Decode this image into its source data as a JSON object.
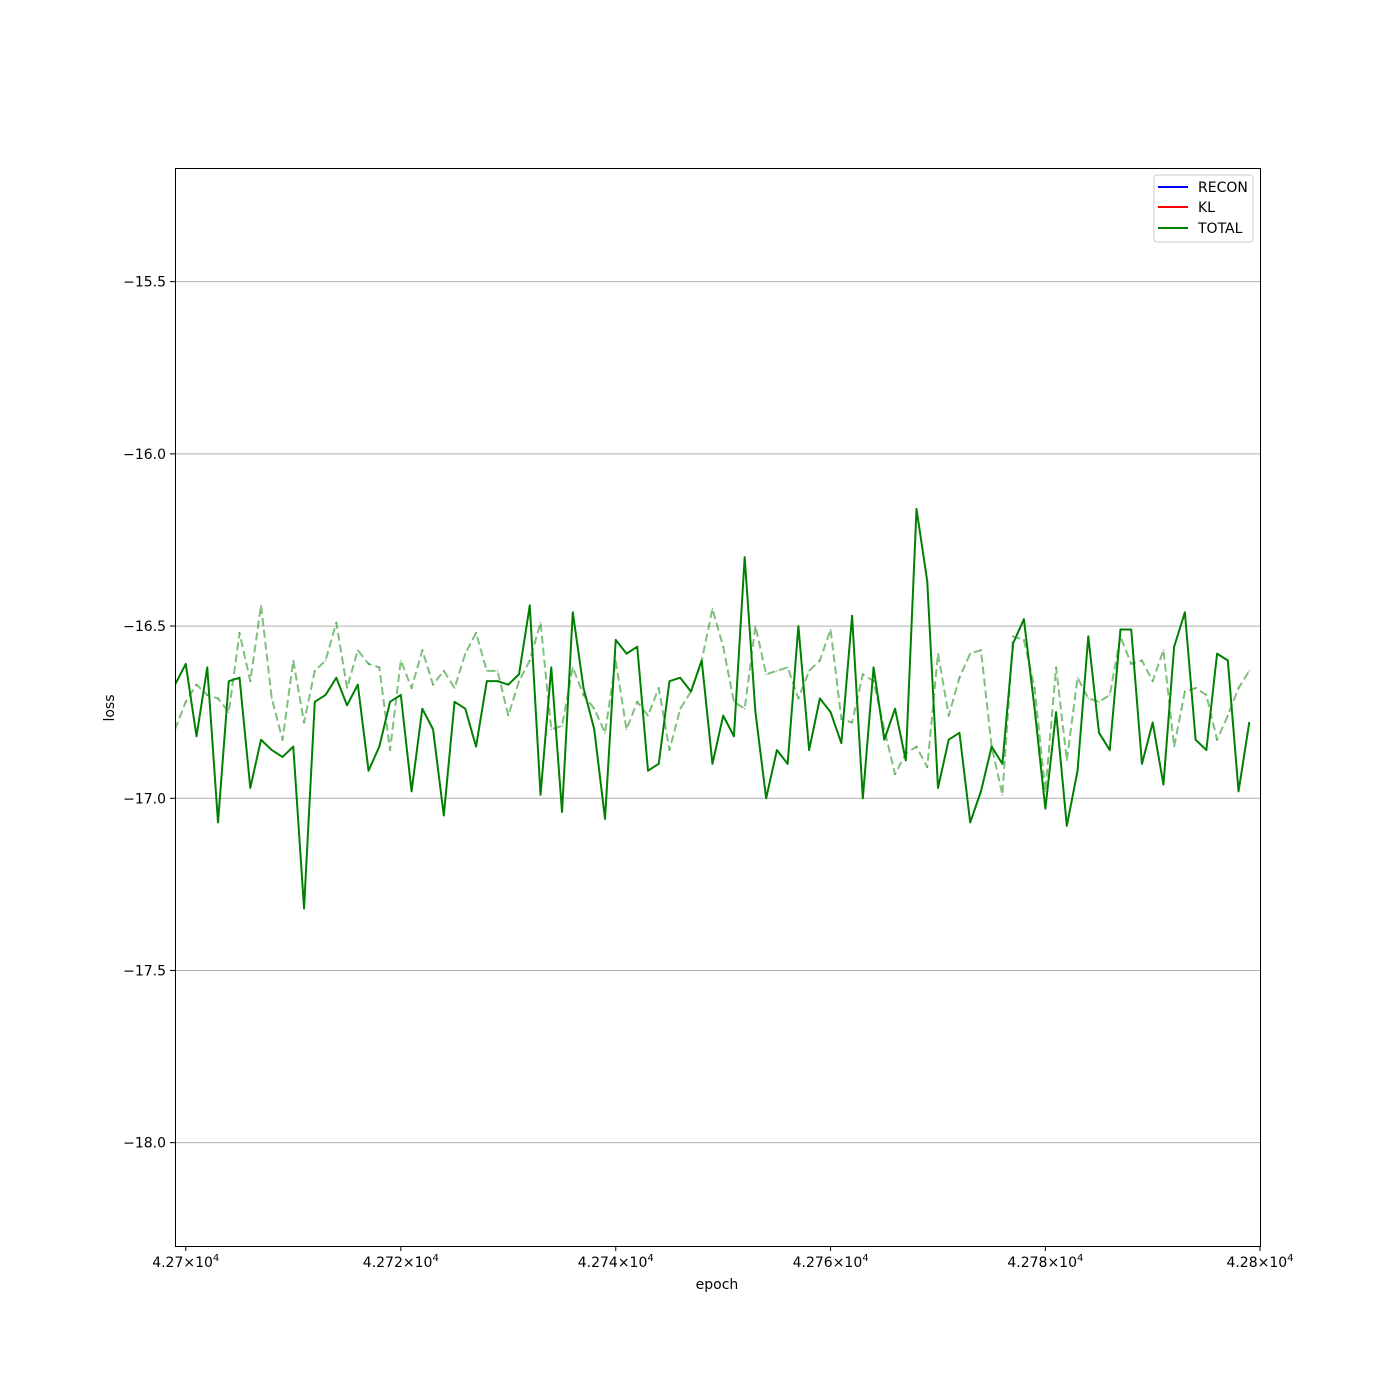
{
  "chart_data": {
    "type": "line",
    "xlabel": "epoch",
    "ylabel": "loss",
    "xlim": [
      42699,
      42800
    ],
    "ylim": [
      -18.3,
      -15.17
    ],
    "x_scale": "log",
    "grid": "y-major",
    "x_ticks": [
      {
        "value": 42700,
        "mantissa": "4.27",
        "exp": "4"
      },
      {
        "value": 42720,
        "mantissa": "4.272",
        "exp": "4"
      },
      {
        "value": 42740,
        "mantissa": "4.274",
        "exp": "4"
      },
      {
        "value": 42760,
        "mantissa": "4.276",
        "exp": "4"
      },
      {
        "value": 42780,
        "mantissa": "4.278",
        "exp": "4"
      },
      {
        "value": 42800,
        "mantissa": "4.28",
        "exp": "4"
      }
    ],
    "y_ticks": [
      {
        "value": -15.5,
        "label": "−15.5"
      },
      {
        "value": -16.0,
        "label": "−16.0"
      },
      {
        "value": -16.5,
        "label": "−16.5"
      },
      {
        "value": -17.0,
        "label": "−17.0"
      },
      {
        "value": -17.5,
        "label": "−17.5"
      },
      {
        "value": -18.0,
        "label": "−18.0"
      }
    ],
    "legend": {
      "placement": "upper right",
      "entries": [
        {
          "label": "RECON",
          "color": "#0000ff"
        },
        {
          "label": "KL",
          "color": "#ff0000"
        },
        {
          "label": "TOTAL",
          "color": "#008000"
        }
      ]
    },
    "x": [
      42699,
      42700,
      42701,
      42702,
      42703,
      42704,
      42705,
      42706,
      42707,
      42708,
      42709,
      42710,
      42711,
      42712,
      42713,
      42714,
      42715,
      42716,
      42717,
      42718,
      42719,
      42720,
      42721,
      42722,
      42723,
      42724,
      42725,
      42726,
      42727,
      42728,
      42729,
      42730,
      42731,
      42732,
      42733,
      42734,
      42735,
      42736,
      42737,
      42738,
      42739,
      42740,
      42741,
      42742,
      42743,
      42744,
      42745,
      42746,
      42747,
      42748,
      42749,
      42750,
      42751,
      42752,
      42753,
      42754,
      42755,
      42756,
      42757,
      42758,
      42759,
      42760,
      42761,
      42762,
      42763,
      42764,
      42765,
      42766,
      42767,
      42768,
      42769,
      42770,
      42771,
      42772,
      42773,
      42774,
      42775,
      42776,
      42777,
      42778,
      42779,
      42780,
      42781,
      42782,
      42783,
      42784,
      42785,
      42786,
      42787,
      42788,
      42789,
      42790,
      42791,
      42792,
      42793,
      42794,
      42795,
      42796,
      42797,
      42798,
      42799
    ],
    "series": [
      {
        "name": "TOTAL",
        "color": "#008000",
        "style": "solid",
        "opacity": 1,
        "values": [
          -16.67,
          -16.61,
          -16.82,
          -16.62,
          -17.07,
          -16.66,
          -16.65,
          -16.97,
          -16.83,
          -16.86,
          -16.88,
          -16.85,
          -17.32,
          -16.72,
          -16.7,
          -16.65,
          -16.73,
          -16.67,
          -16.92,
          -16.85,
          -16.72,
          -16.7,
          -16.98,
          -16.74,
          -16.8,
          -17.05,
          -16.72,
          -16.74,
          -16.85,
          -16.66,
          -16.66,
          -16.67,
          -16.64,
          -16.44,
          -16.99,
          -16.62,
          -17.04,
          -16.46,
          -16.68,
          -16.8,
          -17.06,
          -16.54,
          -16.58,
          -16.56,
          -16.92,
          -16.9,
          -16.66,
          -16.65,
          -16.69,
          -16.6,
          -16.9,
          -16.76,
          -16.82,
          -16.3,
          -16.75,
          -17.0,
          -16.86,
          -16.9,
          -16.5,
          -16.86,
          -16.71,
          -16.75,
          -16.84,
          -16.47,
          -17.0,
          -16.62,
          -16.83,
          -16.74,
          -16.89,
          -16.16,
          -16.37,
          -16.97,
          -16.83,
          -16.81,
          -17.07,
          -16.98,
          -16.85,
          -16.9,
          -16.55,
          -16.48,
          -16.74,
          -17.03,
          -16.75,
          -17.08,
          -16.92,
          -16.53,
          -16.81,
          -16.86,
          -16.51,
          -16.51,
          -16.9,
          -16.78,
          -16.96,
          -16.56,
          -16.46,
          -16.83,
          -16.86,
          -16.58,
          -16.6,
          -16.98,
          -16.78
        ]
      },
      {
        "name": "",
        "color": "#008000",
        "style": "dashed",
        "opacity": 0.5,
        "values": [
          -16.8,
          -16.72,
          -16.67,
          -16.7,
          -16.71,
          -16.75,
          -16.52,
          -16.66,
          -16.44,
          -16.71,
          -16.83,
          -16.6,
          -16.78,
          -16.63,
          -16.6,
          -16.49,
          -16.68,
          -16.57,
          -16.61,
          -16.62,
          -16.86,
          -16.6,
          -16.68,
          -16.57,
          -16.67,
          -16.63,
          -16.68,
          -16.58,
          -16.52,
          -16.63,
          -16.63,
          -16.76,
          -16.66,
          -16.6,
          -16.49,
          -16.8,
          -16.79,
          -16.62,
          -16.7,
          -16.74,
          -16.81,
          -16.6,
          -16.8,
          -16.72,
          -16.76,
          -16.68,
          -16.86,
          -16.74,
          -16.69,
          -16.6,
          -16.45,
          -16.56,
          -16.72,
          -16.74,
          -16.5,
          -16.64,
          -16.63,
          -16.62,
          -16.71,
          -16.63,
          -16.6,
          -16.51,
          -16.77,
          -16.78,
          -16.64,
          -16.66,
          -16.8,
          -16.93,
          -16.87,
          -16.85,
          -16.91,
          -16.58,
          -16.76,
          -16.65,
          -16.58,
          -16.57,
          -16.85,
          -16.99,
          -16.53,
          -16.54,
          -16.68,
          -16.98,
          -16.62,
          -16.89,
          -16.65,
          -16.71,
          -16.72,
          -16.7,
          -16.53,
          -16.61,
          -16.6,
          -16.66,
          -16.57,
          -16.85,
          -16.69,
          -16.68,
          -16.7,
          -16.83,
          -16.76,
          -16.68,
          -16.63
        ]
      }
    ]
  }
}
